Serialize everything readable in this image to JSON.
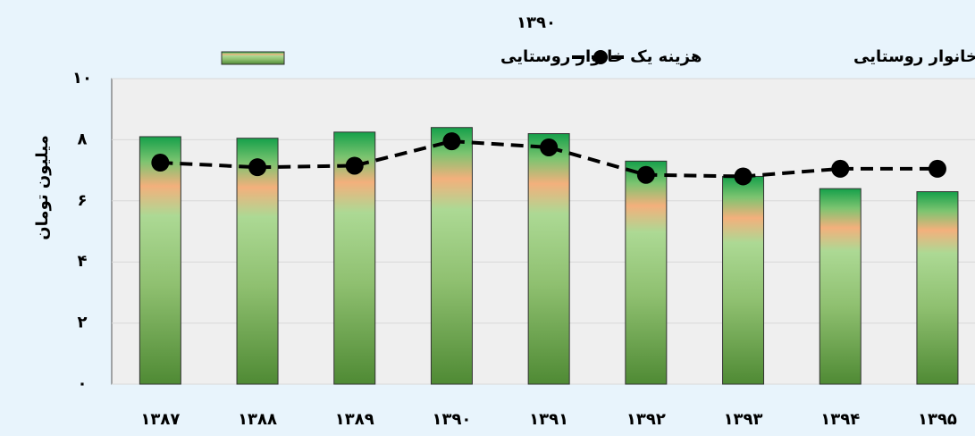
{
  "chart_data": {
    "type": "combo",
    "title": "۱۳۹۰",
    "y_label": "میلیون تومان",
    "categories": [
      "۱۳۸۷",
      "۱۳۸۸",
      "۱۳۸۹",
      "۱۳۹۰",
      "۱۳۹۱",
      "۱۳۹۲",
      "۱۳۹۳",
      "۱۳۹۴",
      "۱۳۹۵"
    ],
    "series": [
      {
        "name": "هزینه یک خانوار روستایی",
        "type": "bar",
        "color": "#6aa84f",
        "values": [
          8.1,
          8.05,
          8.25,
          8.4,
          8.2,
          7.3,
          6.8,
          6.4,
          6.3
        ]
      },
      {
        "name": "درآمد یک خانوار روستایی",
        "type": "line",
        "color": "#000000",
        "values": [
          7.25,
          7.1,
          7.15,
          7.95,
          7.75,
          6.85,
          6.8,
          7.05,
          7.05
        ]
      }
    ],
    "ylim": [
      0,
      10
    ],
    "yticks": [
      {
        "value": 0,
        "label": "۰"
      },
      {
        "value": 2,
        "label": "۲"
      },
      {
        "value": 4,
        "label": "۴"
      },
      {
        "value": 6,
        "label": "۶"
      },
      {
        "value": 8,
        "label": "۸"
      },
      {
        "value": 10,
        "label": "۱۰"
      }
    ],
    "grid": true
  }
}
